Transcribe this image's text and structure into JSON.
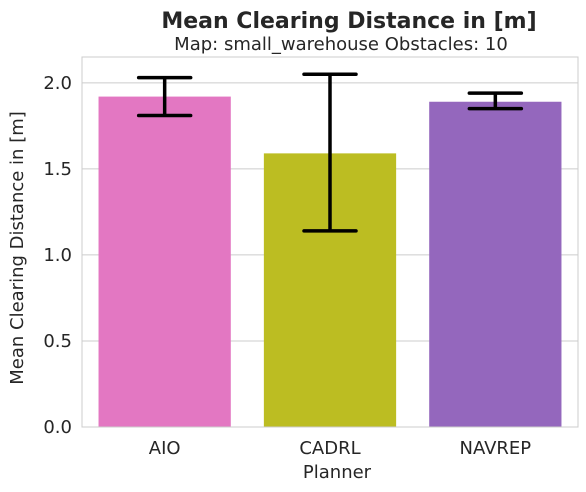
{
  "chart_data": {
    "type": "bar",
    "title": "Mean Clearing Distance in [m]",
    "subtitle": "Map: small_warehouse Obstacles: 10",
    "xlabel": "Planner",
    "ylabel": "Mean Clearing Distance in [m]",
    "categories": [
      "AIO",
      "CADRL",
      "NAVREP"
    ],
    "values": [
      1.92,
      1.59,
      1.89
    ],
    "error_low": [
      1.81,
      1.14,
      1.85
    ],
    "error_high": [
      2.03,
      2.05,
      1.94
    ],
    "colors": [
      "#e377c2",
      "#bcbd22",
      "#9467bd"
    ],
    "ylim": [
      0,
      2.15
    ],
    "yticks": [
      0.0,
      0.5,
      1.0,
      1.5,
      2.0
    ],
    "ytick_labels": [
      "0.0",
      "0.5",
      "1.0",
      "1.5",
      "2.0"
    ],
    "grid": "horizontal"
  }
}
